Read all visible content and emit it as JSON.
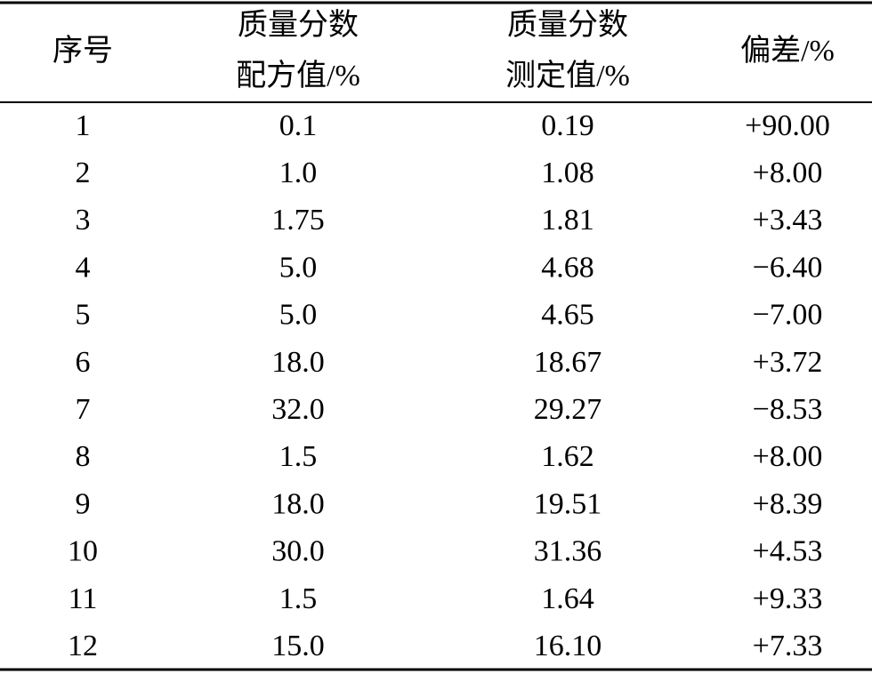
{
  "table": {
    "header": [
      [
        "序号"
      ],
      [
        "质量分数",
        "配方值/%"
      ],
      [
        "质量分数",
        "测定值/%"
      ],
      [
        "偏差/%"
      ]
    ],
    "rows": [
      [
        "1",
        "0.1",
        "0.19",
        "+90.00"
      ],
      [
        "2",
        "1.0",
        "1.08",
        "+8.00"
      ],
      [
        "3",
        "1.75",
        "1.81",
        "+3.43"
      ],
      [
        "4",
        "5.0",
        "4.68",
        "−6.40"
      ],
      [
        "5",
        "5.0",
        "4.65",
        "−7.00"
      ],
      [
        "6",
        "18.0",
        "18.67",
        "+3.72"
      ],
      [
        "7",
        "32.0",
        "29.27",
        "−8.53"
      ],
      [
        "8",
        "1.5",
        "1.62",
        "+8.00"
      ],
      [
        "9",
        "18.0",
        "19.51",
        "+8.39"
      ],
      [
        "10",
        "30.0",
        "31.36",
        "+4.53"
      ],
      [
        "11",
        "1.5",
        "1.64",
        "+9.33"
      ],
      [
        "12",
        "15.0",
        "16.10",
        "+7.33"
      ]
    ]
  }
}
